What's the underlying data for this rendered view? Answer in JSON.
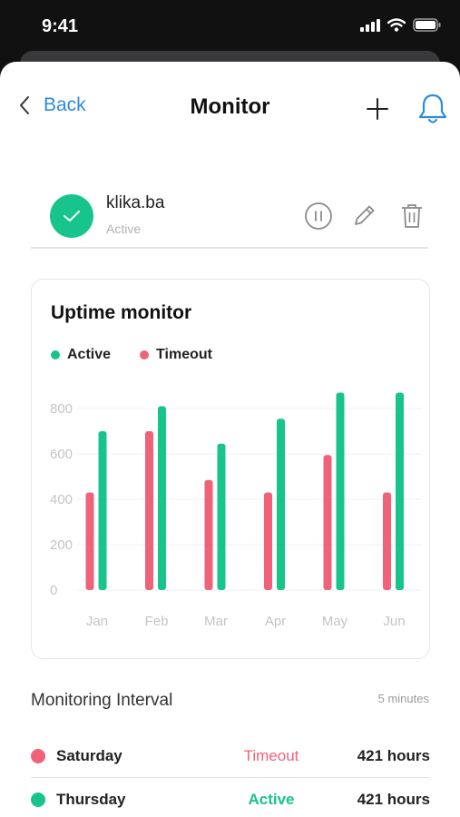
{
  "status_bar": {
    "time": "9:41"
  },
  "nav": {
    "back_label": "Back",
    "title": "Monitor"
  },
  "site": {
    "name": "klika.ba",
    "status": "Active"
  },
  "chart_card": {
    "title": "Uptime monitor",
    "legend": [
      {
        "label": "Active",
        "color": "#17c48b"
      },
      {
        "label": "Timeout",
        "color": "#f0627a"
      }
    ]
  },
  "chart_data": {
    "type": "bar",
    "categories": [
      "Jan",
      "Feb",
      "Mar",
      "Apr",
      "May",
      "Jun"
    ],
    "series": [
      {
        "name": "Timeout",
        "color": "#f0627a",
        "values": [
          430,
          700,
          485,
          430,
          595,
          430
        ]
      },
      {
        "name": "Active",
        "color": "#17c48b",
        "values": [
          700,
          810,
          645,
          755,
          870,
          870
        ]
      }
    ],
    "yticks": [
      0,
      200,
      400,
      600,
      800
    ],
    "ylim": [
      0,
      880
    ],
    "grid": true,
    "legend_position": "top-left"
  },
  "monitoring": {
    "label": "Monitoring Interval",
    "value": "5 minutes"
  },
  "logs": [
    {
      "day": "Saturday",
      "status": "Timeout",
      "hours": "421 hours",
      "color": "#f0627a"
    },
    {
      "day": "Thursday",
      "status": "Active",
      "hours": "421 hours",
      "color": "#17c48b"
    }
  ],
  "icons": [
    "chevron-left-icon",
    "plus-icon",
    "bell-icon",
    "check-icon",
    "pause-icon",
    "pencil-icon",
    "trash-icon",
    "signal-icon",
    "wifi-icon",
    "battery-icon"
  ]
}
